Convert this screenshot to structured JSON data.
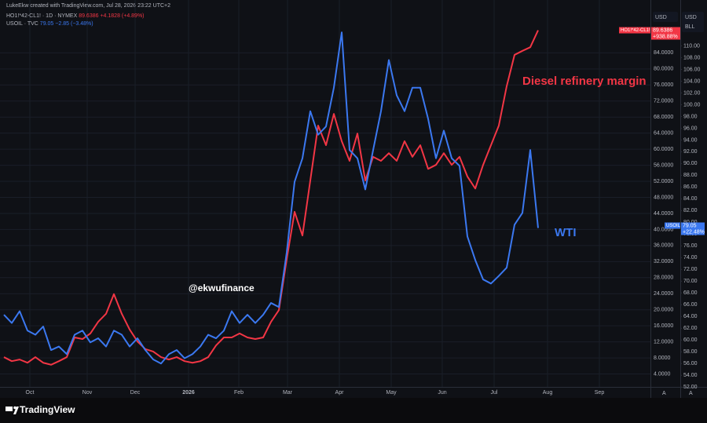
{
  "chart_data": {
    "type": "line",
    "credit": "LukeEkw created with TradingView.com, Jul 28, 2026 23:22 UTC+2",
    "y_axis_currency": "USD",
    "y2_axis_currency": "USD",
    "y2_axis_unit": "BLL",
    "brand": "TradingView",
    "annotations": [
      "Diesel refinery margin",
      "WTI",
      "@ekwufinance"
    ],
    "grid": true,
    "xlim": [
      -0.5,
      82.3
    ],
    "xticks": [
      {
        "value": 3.3,
        "label": "Oct"
      },
      {
        "value": 10.6,
        "label": "Nov"
      },
      {
        "value": 16.7,
        "label": "Dec"
      },
      {
        "value": 23.5,
        "label": "2026"
      },
      {
        "value": 29.9,
        "label": "Feb"
      },
      {
        "value": 36.1,
        "label": "Mar"
      },
      {
        "value": 42.7,
        "label": "Apr"
      },
      {
        "value": 49.3,
        "label": "May"
      },
      {
        "value": 55.8,
        "label": "Jun"
      },
      {
        "value": 62.4,
        "label": "Jul"
      },
      {
        "value": 69.2,
        "label": "Aug"
      },
      {
        "value": 75.8,
        "label": "Sep"
      }
    ],
    "ylim": [
      0,
      96
    ],
    "yticks": [
      {
        "value": 4,
        "label": "4.0000"
      },
      {
        "value": 8,
        "label": "8.0000"
      },
      {
        "value": 12,
        "label": "12.0000"
      },
      {
        "value": 16,
        "label": "16.0000"
      },
      {
        "value": 20,
        "label": "20.0000"
      },
      {
        "value": 24,
        "label": "24.0000"
      },
      {
        "value": 28,
        "label": "28.0000"
      },
      {
        "value": 32,
        "label": "32.0000"
      },
      {
        "value": 36,
        "label": "36.0000"
      },
      {
        "value": 40,
        "label": "40.0000"
      },
      {
        "value": 44,
        "label": "44.0000"
      },
      {
        "value": 48,
        "label": "48.0000"
      },
      {
        "value": 52,
        "label": "52.0000"
      },
      {
        "value": 56,
        "label": "56.0000"
      },
      {
        "value": 60,
        "label": "60.0000"
      },
      {
        "value": 64,
        "label": "64.0000"
      },
      {
        "value": 68,
        "label": "68.0000"
      },
      {
        "value": 72,
        "label": "72.0000"
      },
      {
        "value": 76,
        "label": "76.0000"
      },
      {
        "value": 80,
        "label": "80.0000"
      },
      {
        "value": 84,
        "label": "84.0000"
      }
    ],
    "y2lim": [
      51.5,
      117
    ],
    "y2ticks": [
      {
        "value": 52,
        "label": "52.00"
      },
      {
        "value": 54,
        "label": "54.00"
      },
      {
        "value": 56,
        "label": "56.00"
      },
      {
        "value": 58,
        "label": "58.00"
      },
      {
        "value": 60,
        "label": "60.00"
      },
      {
        "value": 62,
        "label": "62.00"
      },
      {
        "value": 64,
        "label": "64.00"
      },
      {
        "value": 66,
        "label": "66.00"
      },
      {
        "value": 68,
        "label": "68.00"
      },
      {
        "value": 70,
        "label": "70.00"
      },
      {
        "value": 72,
        "label": "72.00"
      },
      {
        "value": 74,
        "label": "74.00"
      },
      {
        "value": 76,
        "label": "76.00"
      },
      {
        "value": 78,
        "label": "78.00"
      },
      {
        "value": 80,
        "label": "80.00"
      },
      {
        "value": 82,
        "label": "82.00"
      },
      {
        "value": 84,
        "label": "84.00"
      },
      {
        "value": 86,
        "label": "86.00"
      },
      {
        "value": 88,
        "label": "88.00"
      },
      {
        "value": 90,
        "label": "90.00"
      },
      {
        "value": 92,
        "label": "92.00"
      },
      {
        "value": 94,
        "label": "94.00"
      },
      {
        "value": 96,
        "label": "96.00"
      },
      {
        "value": 98,
        "label": "98.00"
      },
      {
        "value": 100,
        "label": "100.00"
      },
      {
        "value": 102,
        "label": "102.00"
      },
      {
        "value": 104,
        "label": "104.00"
      },
      {
        "value": 106,
        "label": "106.00"
      },
      {
        "value": 108,
        "label": "108.00"
      },
      {
        "value": 110,
        "label": "110.00"
      }
    ],
    "series": [
      {
        "name": "HO1!*42-CL1! · 1D · NYMEX",
        "short_name": "HO1!*42-CL1!",
        "color": "#f23645",
        "legend_change": "+4.1828 (+4.89%)",
        "total_change": "+938.88%",
        "values": [
          8.2,
          7.2,
          7.6,
          6.8,
          8.2,
          6.8,
          6.3,
          7.2,
          8.2,
          13.1,
          12.7,
          14.1,
          17.0,
          19.0,
          23.9,
          19.0,
          15.1,
          12.1,
          10.2,
          9.6,
          8.2,
          7.6,
          8.2,
          7.2,
          6.8,
          7.2,
          8.2,
          11.1,
          13.1,
          13.1,
          14.1,
          13.1,
          12.7,
          13.1,
          17.0,
          19.9,
          32.6,
          44.4,
          38.5,
          52.2,
          65.9,
          61.0,
          68.8,
          62.0,
          57.1,
          63.9,
          52.2,
          58.1,
          57.1,
          59.0,
          57.1,
          62.0,
          58.1,
          61.0,
          55.1,
          56.1,
          59.0,
          56.1,
          58.1,
          53.2,
          50.2,
          56.1,
          61.0,
          65.9,
          75.7,
          83.5,
          84.5,
          85.4,
          89.6386
        ]
      },
      {
        "name": "USOIL · TVC",
        "short_name": "USOIL",
        "color": "#3b78f0",
        "axis": "y2",
        "legend_change": "−2.85 (−3.48%)",
        "total_change": "+22.48%",
        "values": [
          64.3,
          62.9,
          64.9,
          61.6,
          60.9,
          62.3,
          58.3,
          58.9,
          57.6,
          60.9,
          61.6,
          59.6,
          60.3,
          58.9,
          61.6,
          60.9,
          58.9,
          60.3,
          58.3,
          56.7,
          56.0,
          57.6,
          58.3,
          56.9,
          57.6,
          58.9,
          60.9,
          60.3,
          61.6,
          64.9,
          62.9,
          64.3,
          62.9,
          64.3,
          66.3,
          65.6,
          74.9,
          86.9,
          90.9,
          98.9,
          94.9,
          96.3,
          102.9,
          112.3,
          92.3,
          90.9,
          85.6,
          92.3,
          98.9,
          107.6,
          101.6,
          98.9,
          102.9,
          102.9,
          97.6,
          90.9,
          95.6,
          90.9,
          89.6,
          77.6,
          73.6,
          70.3,
          69.6,
          70.9,
          72.3,
          79.6,
          81.6,
          92.3,
          79.05
        ]
      }
    ]
  }
}
